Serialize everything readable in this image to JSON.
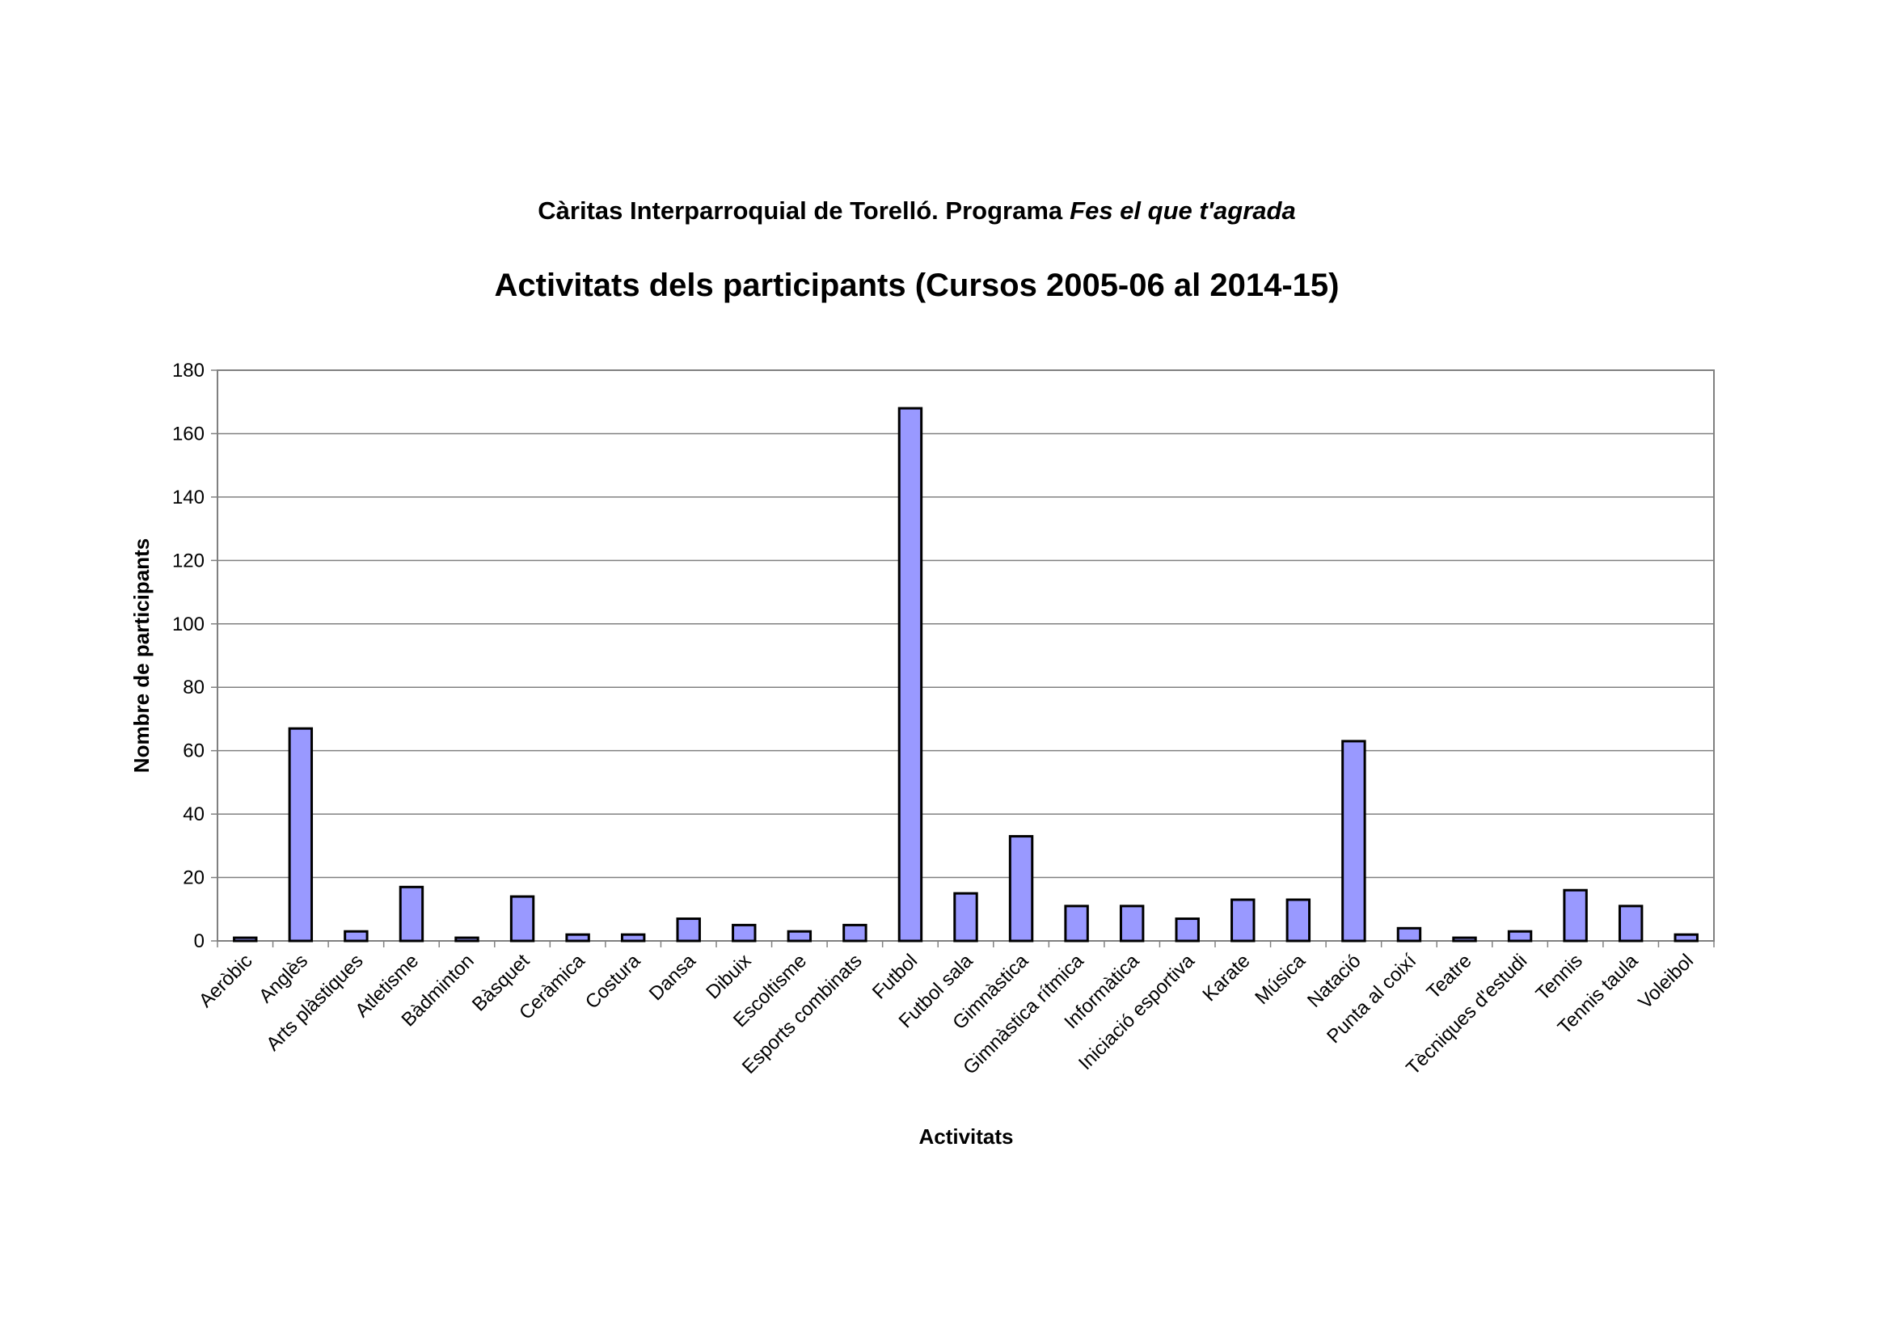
{
  "chart_data": {
    "type": "bar",
    "subtitle": {
      "text": "Càritas Interparroquial de Torelló. Programa",
      "emphasis": "Fes el que t'agrada"
    },
    "title": "Activitats dels participants (Cursos 2005-06 al 2014-15)",
    "x_label": "Activitats",
    "y_label": "Nombre de participants",
    "categories": [
      "Aeròbic",
      "Anglès",
      "Arts plàstiques",
      "Atletisme",
      "Bàdminton",
      "Bàsquet",
      "Ceràmica",
      "Costura",
      "Dansa",
      "Dibuix",
      "Escoltisme",
      "Esports combinats",
      "Futbol",
      "Futbol sala",
      "Gimnàstica",
      "Gimnàstica rítmica",
      "Informàtica",
      "Iniciació esportiva",
      "Karate",
      "Música",
      "Natació",
      "Punta al coixí",
      "Teatre",
      "Tècniques d'estudi",
      "Tennis",
      "Tennis taula",
      "Voleibol"
    ],
    "values": [
      1,
      67,
      3,
      17,
      1,
      14,
      2,
      2,
      7,
      5,
      3,
      5,
      168,
      15,
      33,
      11,
      11,
      7,
      13,
      13,
      63,
      4,
      1,
      3,
      16,
      11,
      2
    ],
    "color": "#9999ff",
    "ylim": [
      0,
      180
    ],
    "yticks": [
      0,
      20,
      40,
      60,
      80,
      100,
      120,
      140,
      160,
      180
    ],
    "grid": true
  }
}
